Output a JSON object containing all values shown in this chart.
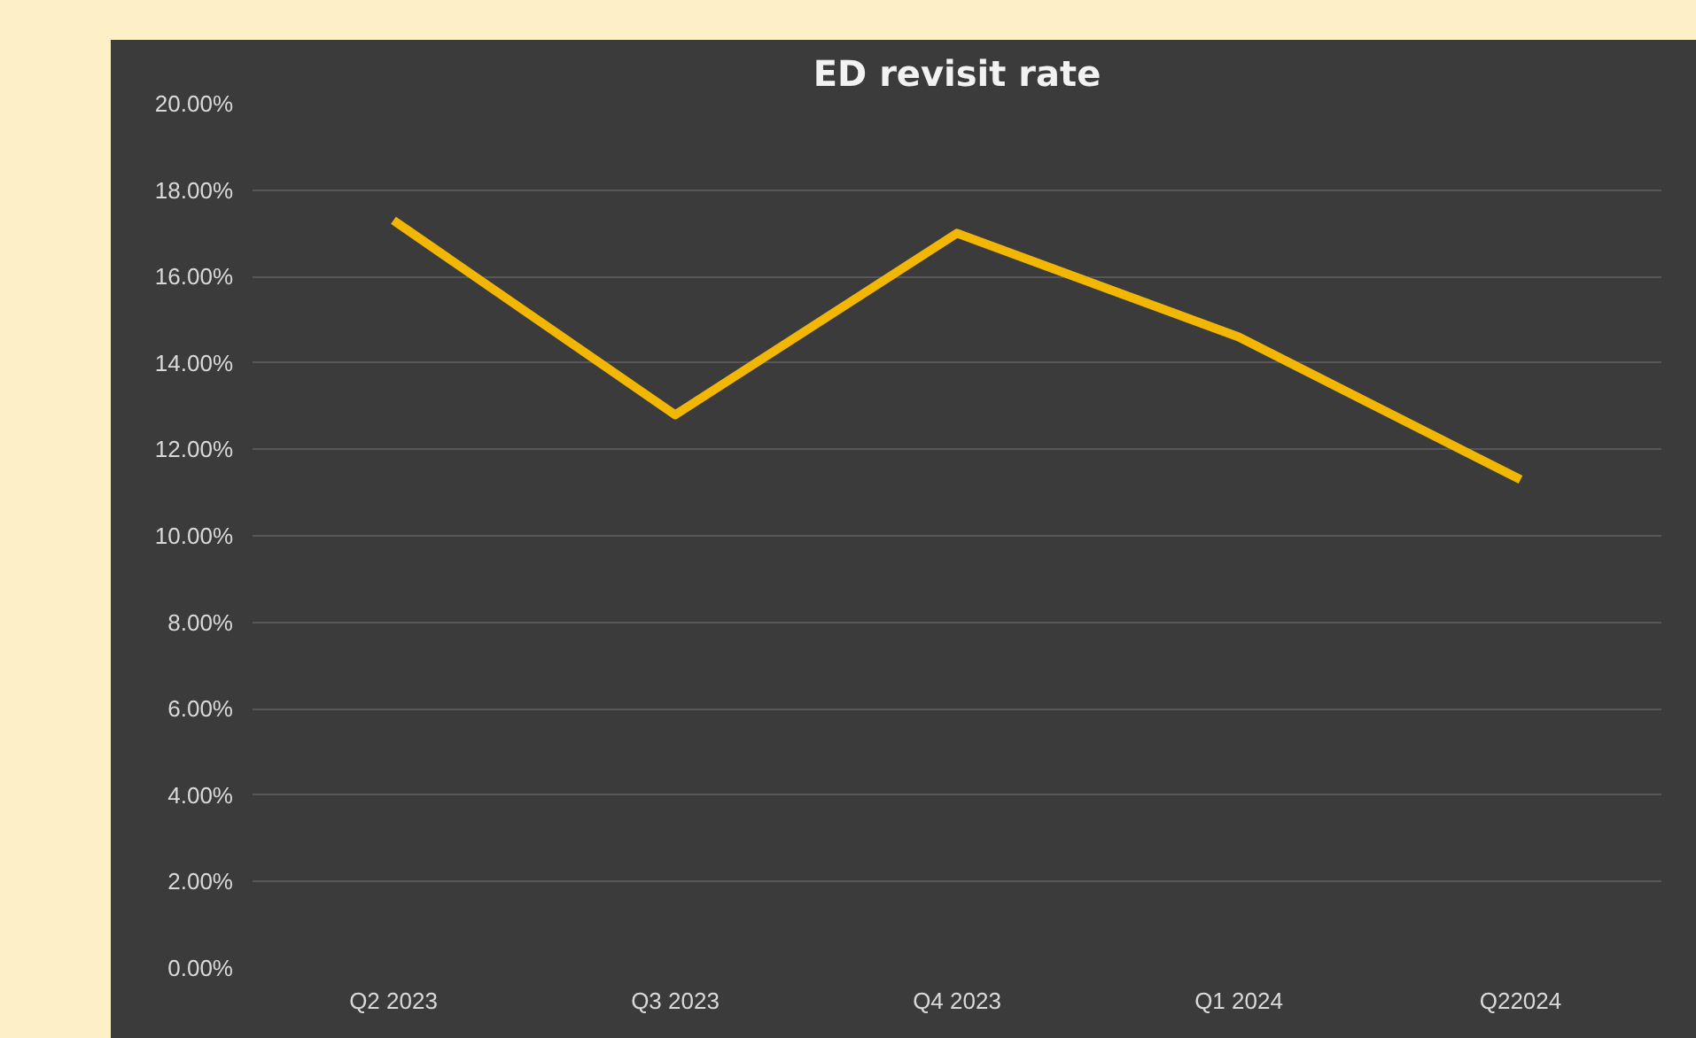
{
  "chart_data": {
    "type": "line",
    "title": "ED revisit rate",
    "categories": [
      "Q2 2023",
      "Q3 2023",
      "Q4 2023",
      "Q1 2024",
      "Q22024"
    ],
    "series": [
      {
        "color": "#f2b705",
        "values": [
          17.3,
          12.8,
          17.0,
          14.6,
          11.3
        ]
      }
    ],
    "ylim": [
      0,
      20
    ],
    "yticks": [
      {
        "value": 0,
        "label": "0.00%"
      },
      {
        "value": 2,
        "label": "2.00%"
      },
      {
        "value": 4,
        "label": "4.00%"
      },
      {
        "value": 6,
        "label": "6.00%"
      },
      {
        "value": 8,
        "label": "8.00%"
      },
      {
        "value": 10,
        "label": "10.00%"
      },
      {
        "value": 12,
        "label": "12.00%"
      },
      {
        "value": 14,
        "label": "14.00%"
      },
      {
        "value": 16,
        "label": "16.00%"
      },
      {
        "value": 18,
        "label": "18.00%"
      },
      {
        "value": 20,
        "label": "20.00%"
      }
    ],
    "grid": "y",
    "line_style": "solid"
  }
}
